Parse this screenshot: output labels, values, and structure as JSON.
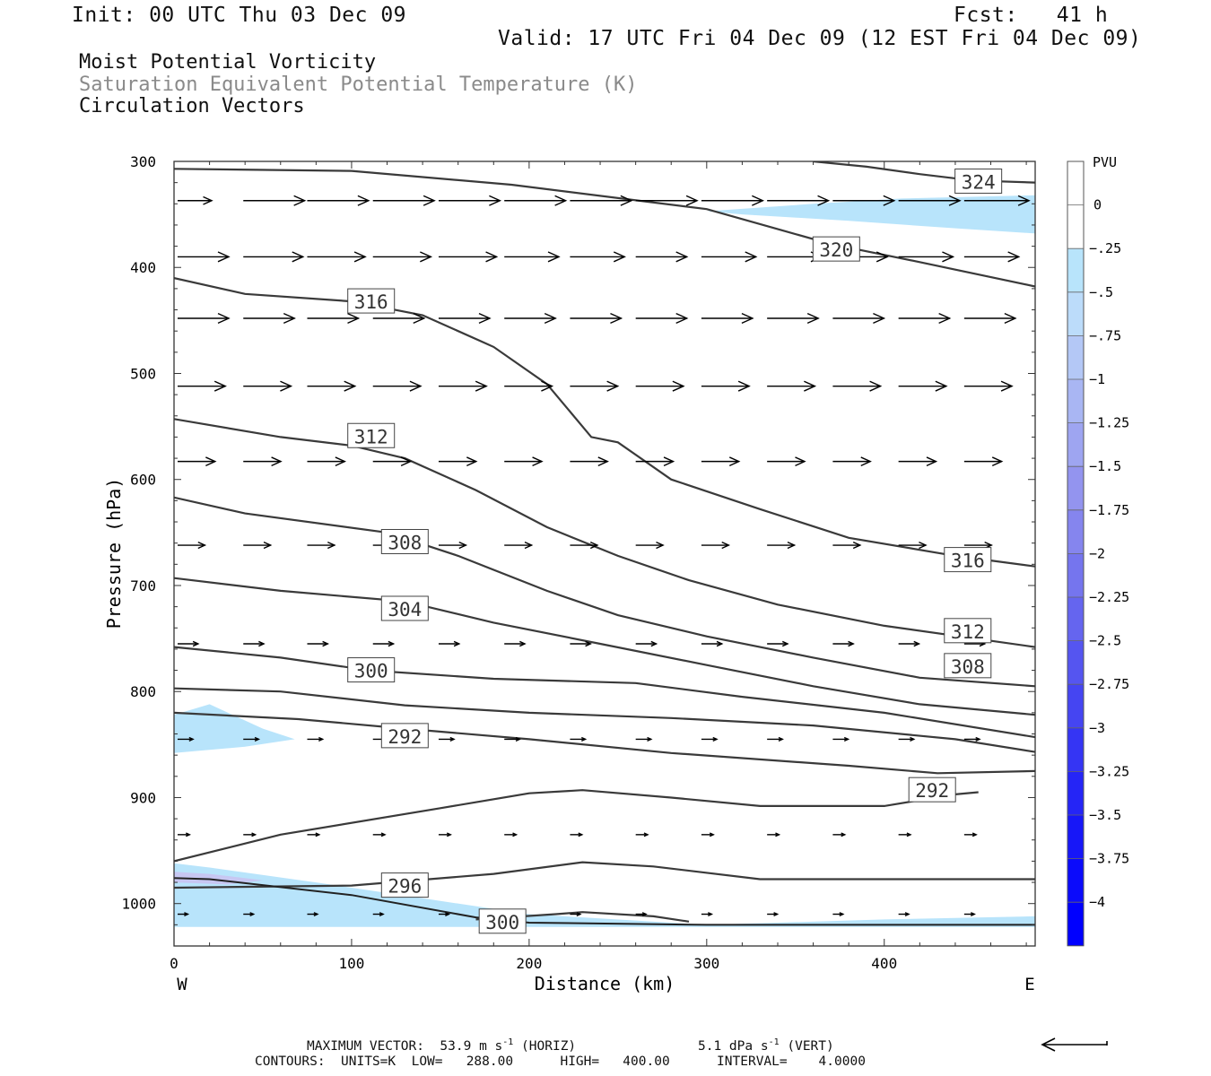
{
  "header": {
    "init": "Init: 00 UTC Thu 03 Dec 09",
    "fcst": "Fcst:   41 h",
    "valid": "Valid: 17 UTC Fri 04 Dec 09 (12 EST Fri 04 Dec 09)",
    "fields": [
      "Moist Potential Vorticity",
      "Saturation Equivalent Potential Temperature (K)",
      "Circulation Vectors"
    ]
  },
  "colors": {
    "shade_light": "#b8e4fb",
    "shade_mid": "#c7c7f2",
    "contour": "#3a3a3a",
    "colorbar_min": "#0000ff"
  },
  "chart_data": {
    "type": "cross-section",
    "xlabel": "Distance (km)",
    "ylabel": "Pressure (hPa)",
    "xlim": [
      0,
      485
    ],
    "ylim": [
      1040,
      300
    ],
    "x_ticks": [
      0,
      100,
      200,
      300,
      400
    ],
    "y_ticks": [
      300,
      400,
      500,
      600,
      700,
      800,
      900,
      1000
    ],
    "x_end_labels": {
      "left": "W",
      "right": "E"
    },
    "contours": [
      {
        "label": "324",
        "points": [
          [
            360,
            300
          ],
          [
            390,
            305
          ],
          [
            420,
            312
          ],
          [
            450,
            318
          ],
          [
            485,
            320
          ]
        ],
        "label_at": [
          453,
          319
        ]
      },
      {
        "label": "320",
        "points": [
          [
            0,
            307
          ],
          [
            100,
            309
          ],
          [
            190,
            322
          ],
          [
            300,
            345
          ],
          [
            370,
            378
          ],
          [
            420,
            395
          ],
          [
            485,
            418
          ]
        ],
        "label_at": [
          373,
          383
        ]
      },
      {
        "label": "316",
        "points": [
          [
            0,
            410
          ],
          [
            40,
            425
          ],
          [
            100,
            432
          ],
          [
            140,
            445
          ],
          [
            180,
            475
          ],
          [
            210,
            510
          ],
          [
            235,
            560
          ],
          [
            250,
            565
          ],
          [
            280,
            600
          ],
          [
            330,
            628
          ],
          [
            380,
            655
          ],
          [
            440,
            672
          ],
          [
            485,
            682
          ]
        ],
        "label_at": [
          111,
          432
        ]
      },
      {
        "label": "316",
        "points": [],
        "label_at": [
          447,
          676
        ]
      },
      {
        "label": "312",
        "points": [
          [
            0,
            543
          ],
          [
            60,
            560
          ],
          [
            100,
            568
          ],
          [
            130,
            580
          ],
          [
            170,
            610
          ],
          [
            210,
            645
          ],
          [
            250,
            672
          ],
          [
            290,
            695
          ],
          [
            340,
            718
          ],
          [
            400,
            738
          ],
          [
            485,
            758
          ]
        ],
        "label_at": [
          111,
          559
        ]
      },
      {
        "label": "312",
        "points": [],
        "label_at": [
          447,
          743
        ]
      },
      {
        "label": "308",
        "points": [
          [
            0,
            617
          ],
          [
            40,
            632
          ],
          [
            120,
            650
          ],
          [
            160,
            672
          ],
          [
            210,
            705
          ],
          [
            250,
            728
          ],
          [
            300,
            748
          ],
          [
            360,
            768
          ],
          [
            420,
            787
          ],
          [
            485,
            795
          ]
        ],
        "label_at": [
          130,
          659
        ]
      },
      {
        "label": "308",
        "points": [],
        "label_at": [
          447,
          776
        ]
      },
      {
        "label": "304",
        "points": [
          [
            0,
            693
          ],
          [
            60,
            705
          ],
          [
            130,
            715
          ],
          [
            180,
            735
          ],
          [
            240,
            755
          ],
          [
            300,
            775
          ],
          [
            360,
            795
          ],
          [
            420,
            812
          ],
          [
            485,
            822
          ]
        ],
        "label_at": [
          130,
          722
        ]
      },
      {
        "label": "300",
        "points": [
          [
            0,
            758
          ],
          [
            60,
            768
          ],
          [
            110,
            780
          ],
          [
            180,
            788
          ],
          [
            260,
            792
          ],
          [
            320,
            805
          ],
          [
            400,
            820
          ],
          [
            485,
            843
          ]
        ],
        "label_at": [
          111,
          780
        ]
      },
      {
        "label": "296",
        "points": [
          [
            0,
            797
          ],
          [
            60,
            800
          ],
          [
            130,
            813
          ],
          [
            200,
            820
          ],
          [
            280,
            825
          ],
          [
            360,
            832
          ],
          [
            440,
            845
          ],
          [
            485,
            857
          ]
        ],
        "label_at": null
      },
      {
        "label": "292",
        "points": [
          [
            0,
            820
          ],
          [
            70,
            826
          ],
          [
            130,
            835
          ],
          [
            200,
            845
          ],
          [
            280,
            858
          ],
          [
            380,
            870
          ],
          [
            430,
            877
          ],
          [
            485,
            875
          ]
        ],
        "label_at": [
          130,
          842
        ]
      },
      {
        "label": "292",
        "points": [
          [
            0,
            960
          ],
          [
            60,
            935
          ],
          [
            150,
            910
          ],
          [
            200,
            896
          ],
          [
            230,
            893
          ],
          [
            280,
            900
          ],
          [
            330,
            908
          ],
          [
            400,
            908
          ],
          [
            440,
            897
          ],
          [
            453,
            895
          ]
        ],
        "label_at": [
          427,
          893
        ]
      },
      {
        "label": "296",
        "points": [
          [
            0,
            985
          ],
          [
            100,
            983
          ],
          [
            180,
            972
          ],
          [
            230,
            961
          ],
          [
            270,
            965
          ],
          [
            330,
            977
          ],
          [
            400,
            977
          ],
          [
            485,
            977
          ]
        ],
        "label_at": [
          130,
          983
        ]
      },
      {
        "label": "300",
        "points": [
          [
            170,
            1015
          ],
          [
            215,
            1010
          ],
          [
            230,
            1008
          ],
          [
            270,
            1012
          ],
          [
            290,
            1017
          ]
        ],
        "label_at": [
          185,
          1017
        ]
      }
    ],
    "ground": [
      [
        0,
        976
      ],
      [
        20,
        977
      ],
      [
        100,
        992
      ],
      [
        170,
        1013
      ],
      [
        200,
        1018
      ],
      [
        300,
        1020
      ],
      [
        485,
        1020
      ]
    ],
    "shaded_regions": [
      {
        "pvu": "0 to -0.25",
        "points": [
          [
            300,
            347
          ],
          [
            360,
            340
          ],
          [
            410,
            335
          ],
          [
            485,
            332
          ],
          [
            485,
            368
          ],
          [
            430,
            362
          ],
          [
            380,
            356
          ],
          [
            320,
            350
          ]
        ]
      },
      {
        "pvu": "0 to -0.25",
        "points": [
          [
            0,
            822
          ],
          [
            20,
            812
          ],
          [
            50,
            835
          ],
          [
            68,
            845
          ],
          [
            40,
            852
          ],
          [
            20,
            855
          ],
          [
            0,
            858
          ]
        ]
      },
      {
        "pvu": "0 to -0.25",
        "points": [
          [
            0,
            962
          ],
          [
            20,
            966
          ],
          [
            80,
            980
          ],
          [
            140,
            995
          ],
          [
            200,
            1010
          ],
          [
            300,
            1020
          ],
          [
            400,
            1015
          ],
          [
            485,
            1012
          ],
          [
            485,
            1022
          ],
          [
            0,
            1022
          ]
        ]
      },
      {
        "pvu": "-0.25 to -0.5",
        "points": [
          [
            0,
            970
          ],
          [
            20,
            972
          ],
          [
            50,
            978
          ],
          [
            30,
            982
          ],
          [
            0,
            980
          ]
        ]
      }
    ],
    "vectors": [
      {
        "p": 337,
        "x": [
          0,
          37,
          73,
          110,
          147,
          184,
          221,
          258,
          295,
          332,
          369,
          406,
          443
        ],
        "len": [
          20,
          36,
          36,
          36,
          36,
          36,
          36,
          36,
          36,
          36,
          36,
          36,
          38
        ]
      },
      {
        "p": 390,
        "x": [
          0,
          37,
          73,
          110,
          147,
          184,
          221,
          258,
          295,
          332,
          369,
          406,
          443
        ],
        "len": [
          30,
          35,
          34,
          34,
          34,
          32,
          32,
          30,
          32,
          32,
          32,
          32,
          32
        ]
      },
      {
        "p": 448,
        "x": [
          0,
          37,
          73,
          110,
          147,
          184,
          221,
          258,
          295,
          332,
          369,
          406,
          443
        ],
        "len": [
          30,
          30,
          30,
          30,
          30,
          30,
          30,
          30,
          30,
          30,
          30,
          30,
          30
        ]
      },
      {
        "p": 512,
        "x": [
          0,
          37,
          73,
          110,
          147,
          184,
          221,
          258,
          295,
          332,
          369,
          406,
          443
        ],
        "len": [
          28,
          28,
          28,
          28,
          28,
          28,
          28,
          28,
          28,
          28,
          28,
          28,
          28
        ]
      },
      {
        "p": 583,
        "x": [
          0,
          37,
          73,
          110,
          147,
          184,
          221,
          258,
          295,
          332,
          369,
          406,
          443
        ],
        "len": [
          22,
          22,
          22,
          22,
          22,
          22,
          22,
          22,
          22,
          22,
          22,
          22,
          22
        ]
      },
      {
        "p": 662,
        "x": [
          0,
          37,
          73,
          110,
          147,
          184,
          221,
          258,
          295,
          332,
          369,
          406,
          443
        ],
        "len": [
          16,
          16,
          16,
          16,
          16,
          16,
          16,
          16,
          16,
          16,
          16,
          16,
          16
        ]
      },
      {
        "p": 755,
        "x": [
          0,
          37,
          73,
          110,
          147,
          184,
          221,
          258,
          295,
          332,
          369,
          406,
          443
        ],
        "len": [
          12,
          12,
          12,
          12,
          12,
          12,
          12,
          12,
          12,
          12,
          12,
          12,
          12
        ]
      },
      {
        "p": 845,
        "x": [
          0,
          37,
          73,
          110,
          147,
          184,
          221,
          258,
          295,
          332,
          369,
          406,
          443
        ],
        "len": [
          9,
          9,
          9,
          9,
          9,
          9,
          9,
          9,
          9,
          9,
          9,
          9,
          9
        ]
      },
      {
        "p": 935,
        "x": [
          0,
          37,
          73,
          110,
          147,
          184,
          221,
          258,
          295,
          332,
          369,
          406,
          443
        ],
        "len": [
          7,
          7,
          7,
          7,
          7,
          7,
          7,
          7,
          7,
          7,
          7,
          7,
          7
        ]
      },
      {
        "p": 1010,
        "x": [
          0,
          37,
          73,
          110,
          147,
          184,
          221,
          258,
          295,
          332,
          369,
          406,
          443
        ],
        "len": [
          6,
          6,
          6,
          6,
          6,
          6,
          6,
          6,
          6,
          6,
          6,
          6,
          6
        ]
      }
    ],
    "colorbar": {
      "unit": "PVU",
      "labels": [
        "0",
        "-.25",
        "-.5",
        "-.75",
        "-1",
        "-1.25",
        "-1.5",
        "-1.75",
        "-2",
        "-2.25",
        "-2.5",
        "-2.75",
        "-3",
        "-3.25",
        "-3.5",
        "-3.75",
        "-4"
      ],
      "colors": [
        "#ffffff",
        "#b8e4fb",
        "#bcdcfa",
        "#b4c8f6",
        "#a9b6f3",
        "#9ea5f1",
        "#9394ef",
        "#8585ee",
        "#7575ee",
        "#6565ef",
        "#5555f0",
        "#4545f2",
        "#3535f4",
        "#2525f6",
        "#1717f8",
        "#0b0bfb",
        "#0000ff"
      ]
    }
  },
  "footer": {
    "max_vector_label": "MAXIMUM VECTOR:",
    "horiz": "53.9 m s",
    "horiz_exp": "-1",
    "horiz_tag": "(HORIZ)",
    "vert": "5.1 dPa s",
    "vert_exp": "-1",
    "vert_tag": "(VERT)",
    "contours_line": "CONTOURS:  UNITS=K  LOW=   288.00      HIGH=   400.00      INTERVAL=    4.0000"
  }
}
